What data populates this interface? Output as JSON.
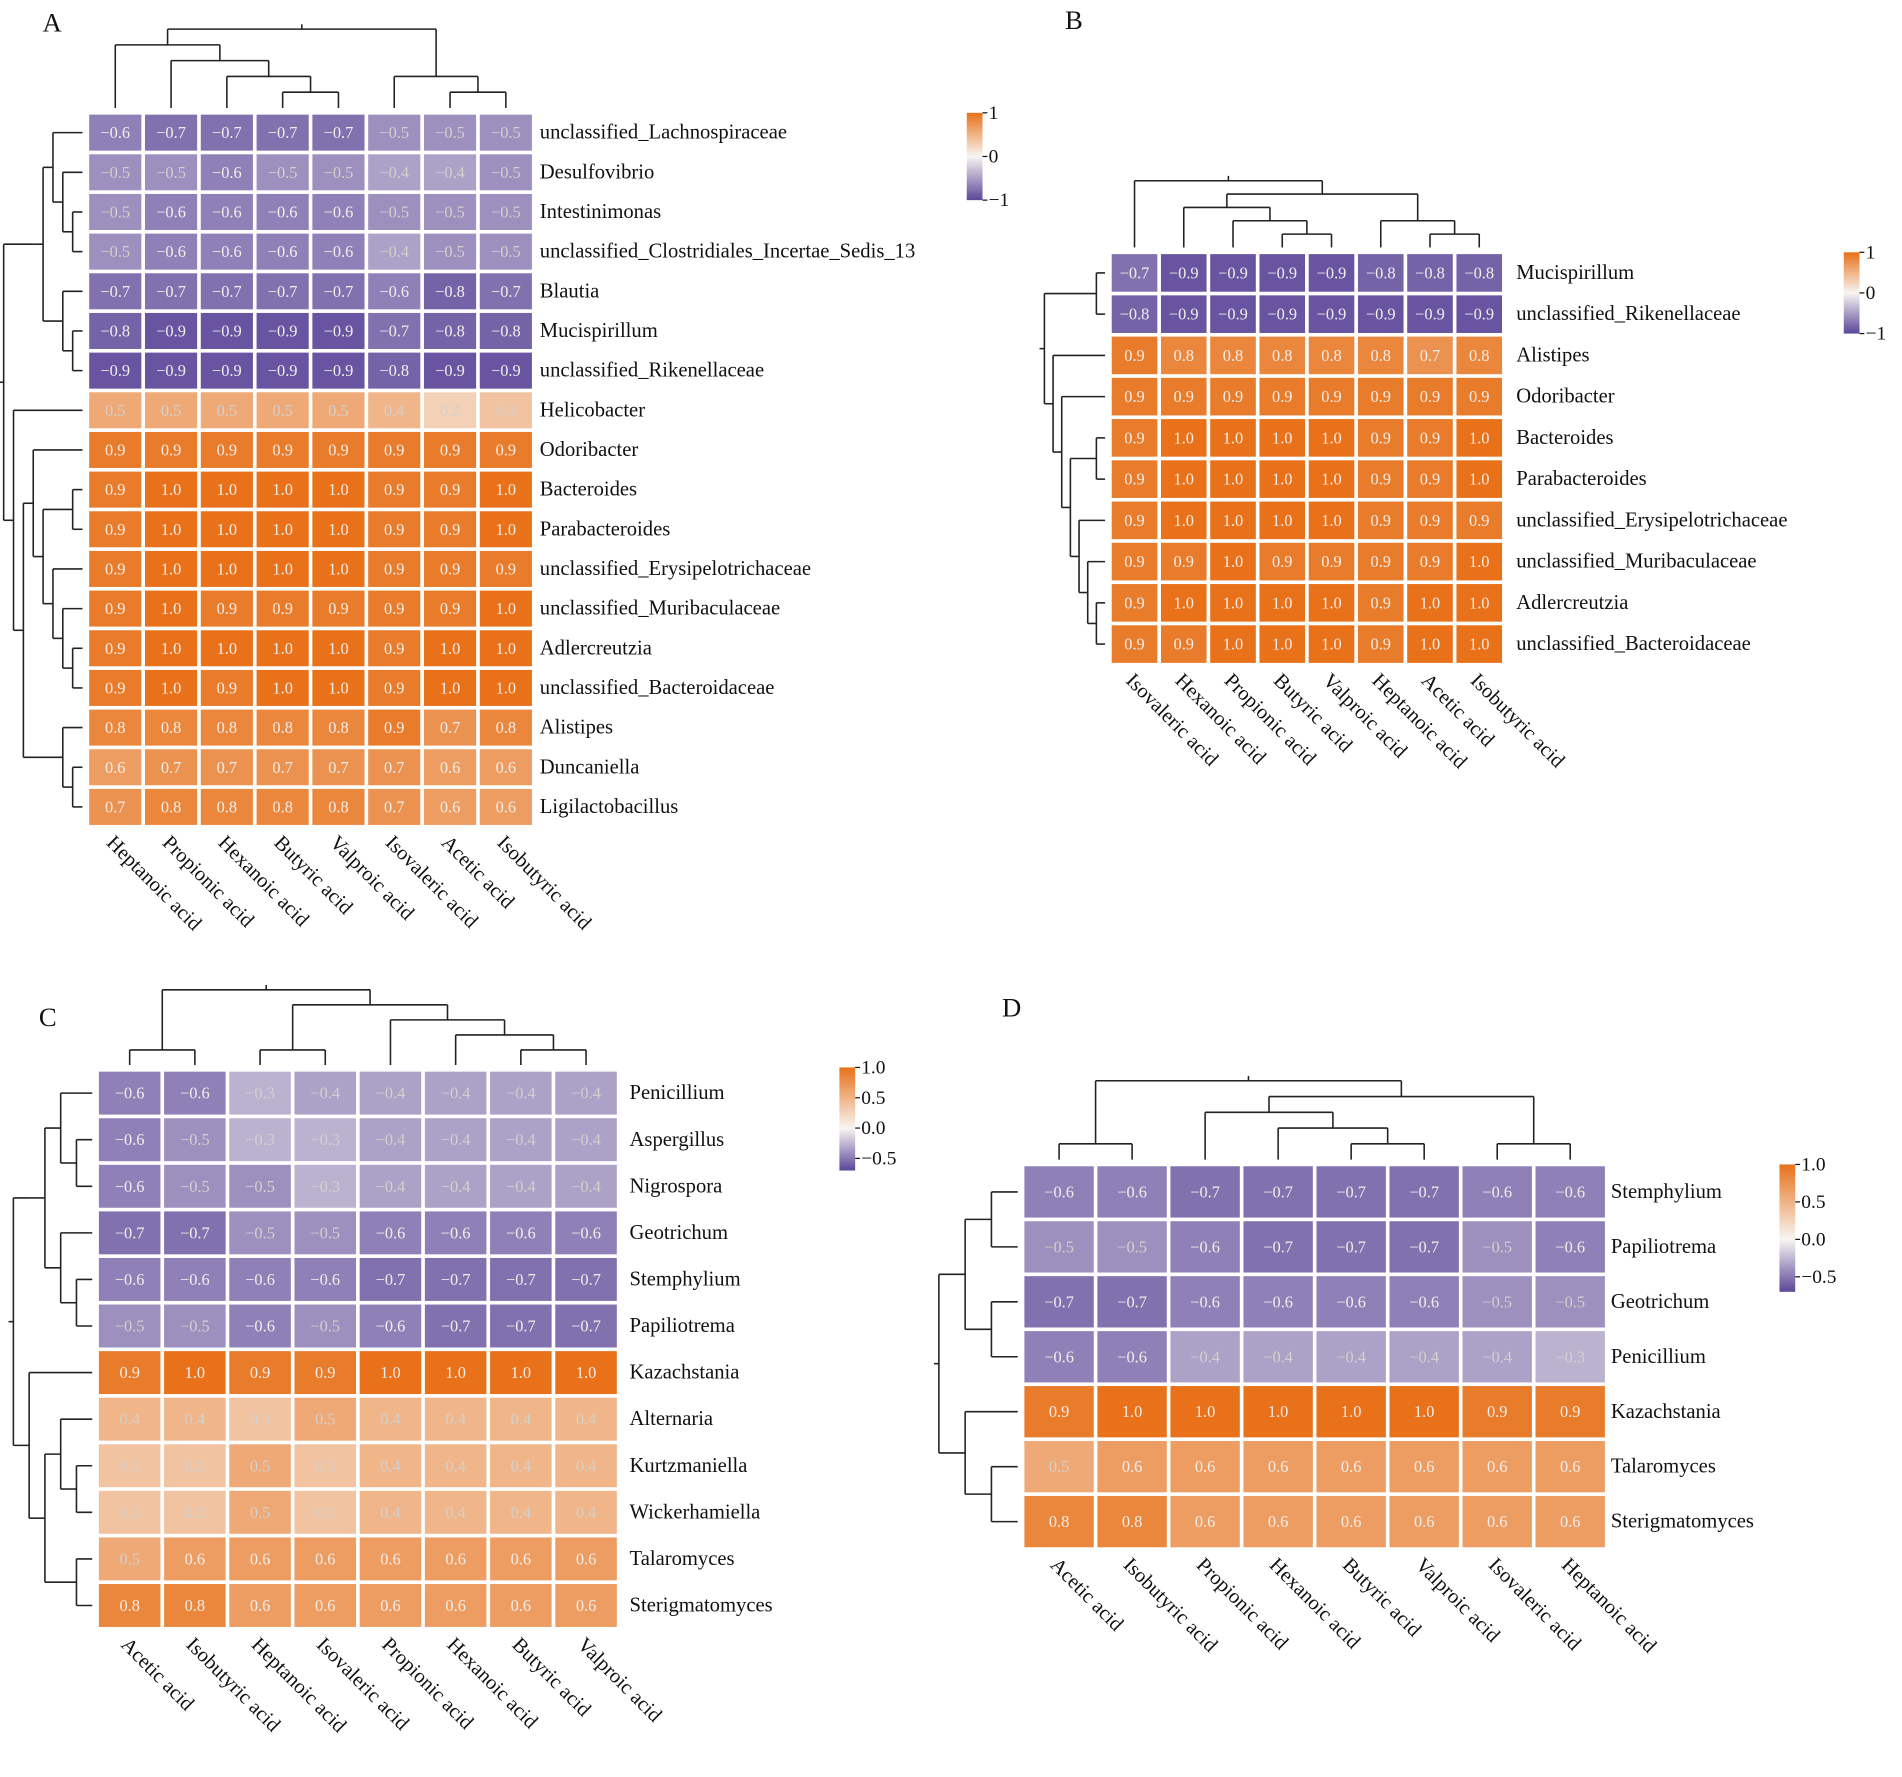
{
  "chart_data": [
    {
      "type": "heatmap",
      "panel": "A",
      "columns": [
        "Heptanoic acid",
        "Propionic acid",
        "Hexanoic acid",
        "Butyric acid",
        "Valproic acid",
        "Isovaleric acid",
        "Acetic acid",
        "Isobutyric acid"
      ],
      "rows": [
        "unclassified_Lachnospiraceae",
        "Desulfovibrio",
        "Intestinimonas",
        "unclassified_Clostridiales_Incertae_Sedis_13",
        "Blautia",
        "Mucispirillum",
        "unclassified_Rikenellaceae",
        "Helicobacter",
        "Odoribacter",
        "Bacteroides",
        "Parabacteroides",
        "unclassified_Erysipelotrichaceae",
        "unclassified_Muribaculaceae",
        "Adlercreutzia",
        "unclassified_Bacteroidaceae",
        "Alistipes",
        "Duncaniella",
        "Ligilactobacillus"
      ],
      "values": [
        [
          -0.6,
          -0.7,
          -0.7,
          -0.7,
          -0.7,
          -0.5,
          -0.5,
          -0.5
        ],
        [
          -0.5,
          -0.5,
          -0.6,
          -0.5,
          -0.5,
          -0.4,
          -0.4,
          -0.5
        ],
        [
          -0.5,
          -0.6,
          -0.6,
          -0.6,
          -0.6,
          -0.5,
          -0.5,
          -0.5
        ],
        [
          -0.5,
          -0.6,
          -0.6,
          -0.6,
          -0.6,
          -0.4,
          -0.5,
          -0.5
        ],
        [
          -0.7,
          -0.7,
          -0.7,
          -0.7,
          -0.7,
          -0.6,
          -0.8,
          -0.7
        ],
        [
          -0.8,
          -0.9,
          -0.9,
          -0.9,
          -0.9,
          -0.7,
          -0.8,
          -0.8
        ],
        [
          -0.9,
          -0.9,
          -0.9,
          -0.9,
          -0.9,
          -0.8,
          -0.9,
          -0.9
        ],
        [
          0.5,
          0.5,
          0.5,
          0.5,
          0.5,
          0.4,
          0.2,
          0.3
        ],
        [
          0.9,
          0.9,
          0.9,
          0.9,
          0.9,
          0.9,
          0.9,
          0.9
        ],
        [
          0.9,
          1.0,
          1.0,
          1.0,
          1.0,
          0.9,
          0.9,
          1.0
        ],
        [
          0.9,
          1.0,
          1.0,
          1.0,
          1.0,
          0.9,
          0.9,
          1.0
        ],
        [
          0.9,
          1.0,
          1.0,
          1.0,
          1.0,
          0.9,
          0.9,
          0.9
        ],
        [
          0.9,
          1.0,
          0.9,
          0.9,
          0.9,
          0.9,
          0.9,
          1.0
        ],
        [
          0.9,
          1.0,
          1.0,
          1.0,
          1.0,
          0.9,
          1.0,
          1.0
        ],
        [
          0.9,
          1.0,
          0.9,
          1.0,
          1.0,
          0.9,
          1.0,
          1.0
        ],
        [
          0.8,
          0.8,
          0.8,
          0.8,
          0.8,
          0.9,
          0.7,
          0.8
        ],
        [
          0.6,
          0.7,
          0.7,
          0.7,
          0.7,
          0.7,
          0.6,
          0.6
        ],
        [
          0.7,
          0.8,
          0.8,
          0.8,
          0.8,
          0.7,
          0.6,
          0.6
        ]
      ],
      "legend_ticks": [
        "1",
        "0",
        "−1"
      ],
      "legend_range": [
        -1,
        1
      ]
    },
    {
      "type": "heatmap",
      "panel": "B",
      "columns": [
        "Isovaleric acid",
        "Hexanoic acid",
        "Propionic acid",
        "Butyric acid",
        "Valproic acid",
        "Heptanoic acid",
        "Acetic acid",
        "Isobutyric acid"
      ],
      "rows": [
        "Mucispirillum",
        "unclassified_Rikenellaceae",
        "Alistipes",
        "Odoribacter",
        "Bacteroides",
        "Parabacteroides",
        "unclassified_Erysipelotrichaceae",
        "unclassified_Muribaculaceae",
        "Adlercreutzia",
        "unclassified_Bacteroidaceae"
      ],
      "values": [
        [
          -0.7,
          -0.9,
          -0.9,
          -0.9,
          -0.9,
          -0.8,
          -0.8,
          -0.8
        ],
        [
          -0.8,
          -0.9,
          -0.9,
          -0.9,
          -0.9,
          -0.9,
          -0.9,
          -0.9
        ],
        [
          0.9,
          0.8,
          0.8,
          0.8,
          0.8,
          0.8,
          0.7,
          0.8
        ],
        [
          0.9,
          0.9,
          0.9,
          0.9,
          0.9,
          0.9,
          0.9,
          0.9
        ],
        [
          0.9,
          1.0,
          1.0,
          1.0,
          1.0,
          0.9,
          0.9,
          1.0
        ],
        [
          0.9,
          1.0,
          1.0,
          1.0,
          1.0,
          0.9,
          0.9,
          1.0
        ],
        [
          0.9,
          1.0,
          1.0,
          1.0,
          1.0,
          0.9,
          0.9,
          0.9
        ],
        [
          0.9,
          0.9,
          1.0,
          0.9,
          0.9,
          0.9,
          0.9,
          1.0
        ],
        [
          0.9,
          1.0,
          1.0,
          1.0,
          1.0,
          0.9,
          1.0,
          1.0
        ],
        [
          0.9,
          0.9,
          1.0,
          1.0,
          1.0,
          0.9,
          1.0,
          1.0
        ]
      ],
      "legend_ticks": [
        "1",
        "0",
        "−1"
      ],
      "legend_range": [
        -1,
        1
      ]
    },
    {
      "type": "heatmap",
      "panel": "C",
      "columns": [
        "Acetic acid",
        "Isobutyric acid",
        "Heptanoic acid",
        "Isovaleric acid",
        "Propionic acid",
        "Hexanoic acid",
        "Butyric acid",
        "Valproic acid"
      ],
      "rows": [
        "Penicillium",
        "Aspergillus",
        "Nigrospora",
        "Geotrichum",
        "Stemphylium",
        "Papiliotrema",
        "Kazachstania",
        "Alternaria",
        "Kurtzmaniella",
        "Wickerhamiella",
        "Talaromyces",
        "Sterigmatomyces"
      ],
      "values": [
        [
          -0.6,
          -0.6,
          -0.3,
          -0.4,
          -0.4,
          -0.4,
          -0.4,
          -0.4
        ],
        [
          -0.6,
          -0.5,
          -0.3,
          -0.3,
          -0.4,
          -0.4,
          -0.4,
          -0.4
        ],
        [
          -0.6,
          -0.5,
          -0.5,
          -0.3,
          -0.4,
          -0.4,
          -0.4,
          -0.4
        ],
        [
          -0.7,
          -0.7,
          -0.5,
          -0.5,
          -0.6,
          -0.6,
          -0.6,
          -0.6
        ],
        [
          -0.6,
          -0.6,
          -0.6,
          -0.6,
          -0.7,
          -0.7,
          -0.7,
          -0.7
        ],
        [
          -0.5,
          -0.5,
          -0.6,
          -0.5,
          -0.6,
          -0.7,
          -0.7,
          -0.7
        ],
        [
          0.9,
          1.0,
          0.9,
          0.9,
          1.0,
          1.0,
          1.0,
          1.0
        ],
        [
          0.4,
          0.4,
          0.3,
          0.5,
          0.4,
          0.4,
          0.4,
          0.4
        ],
        [
          0.3,
          0.3,
          0.5,
          0.3,
          0.4,
          0.4,
          0.4,
          0.4
        ],
        [
          0.3,
          0.3,
          0.5,
          0.3,
          0.4,
          0.4,
          0.4,
          0.4
        ],
        [
          0.5,
          0.6,
          0.6,
          0.6,
          0.6,
          0.6,
          0.6,
          0.6
        ],
        [
          0.8,
          0.8,
          0.6,
          0.6,
          0.6,
          0.6,
          0.6,
          0.6
        ]
      ],
      "legend_ticks": [
        "1.0",
        "0.5",
        "0.0",
        "−0.5"
      ],
      "legend_range": [
        -0.7,
        1.0
      ]
    },
    {
      "type": "heatmap",
      "panel": "D",
      "columns": [
        "Acetic acid",
        "Isobutyric acid",
        "Propionic acid",
        "Hexanoic acid",
        "Butyric acid",
        "Valproic acid",
        "Isovaleric acid",
        "Heptanoic acid"
      ],
      "rows": [
        "Stemphylium",
        "Papiliotrema",
        "Geotrichum",
        "Penicillium",
        "Kazachstania",
        "Talaromyces",
        "Sterigmatomyces"
      ],
      "values": [
        [
          -0.6,
          -0.6,
          -0.7,
          -0.7,
          -0.7,
          -0.7,
          -0.6,
          -0.6
        ],
        [
          -0.5,
          -0.5,
          -0.6,
          -0.7,
          -0.7,
          -0.7,
          -0.5,
          -0.6
        ],
        [
          -0.7,
          -0.7,
          -0.6,
          -0.6,
          -0.6,
          -0.6,
          -0.5,
          -0.5
        ],
        [
          -0.6,
          -0.6,
          -0.4,
          -0.4,
          -0.4,
          -0.4,
          -0.4,
          -0.3
        ],
        [
          0.9,
          1.0,
          1.0,
          1.0,
          1.0,
          1.0,
          0.9,
          0.9
        ],
        [
          0.5,
          0.6,
          0.6,
          0.6,
          0.6,
          0.6,
          0.6,
          0.6
        ],
        [
          0.8,
          0.8,
          0.6,
          0.6,
          0.6,
          0.6,
          0.6,
          0.6
        ]
      ],
      "legend_ticks": [
        "1.0",
        "0.5",
        "0.0",
        "−0.5"
      ],
      "legend_range": [
        -0.7,
        1.0
      ]
    }
  ],
  "colors": {
    "negative": "#5b4699",
    "neutral": "#f7f5f2",
    "positive": "#e8711a"
  }
}
